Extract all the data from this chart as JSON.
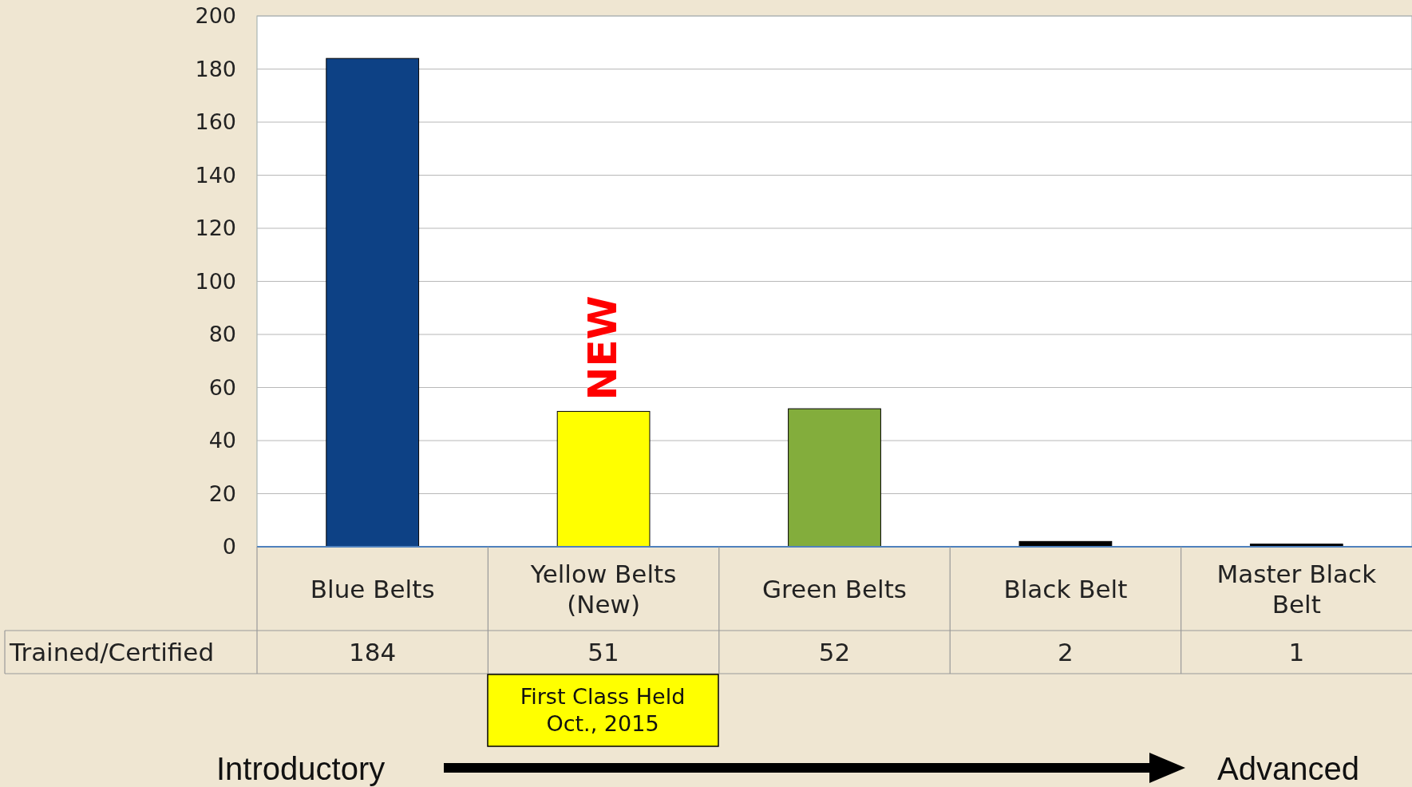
{
  "chart_data": {
    "type": "bar",
    "categories": [
      "Blue Belts",
      "Yellow Belts (New)",
      "Green Belts",
      "Black Belt",
      "Master Black Belt"
    ],
    "series": [
      {
        "name": "Trained/Certified",
        "values": [
          184,
          51,
          52,
          2,
          1
        ],
        "colors": [
          "#0d4185",
          "#ffff00",
          "#83ad3c",
          "#000000",
          "#000000"
        ]
      }
    ],
    "ylim": [
      0,
      200
    ],
    "yticks": [
      0,
      20,
      40,
      60,
      80,
      100,
      120,
      140,
      160,
      180,
      200
    ],
    "grid": "y",
    "data_labels": true,
    "annotations": [
      {
        "text": "NEW",
        "x": "Yellow Belts (New)",
        "y": 51
      },
      "First Class Held Oct., 2015",
      "Introductory",
      "Advanced"
    ]
  }
}
